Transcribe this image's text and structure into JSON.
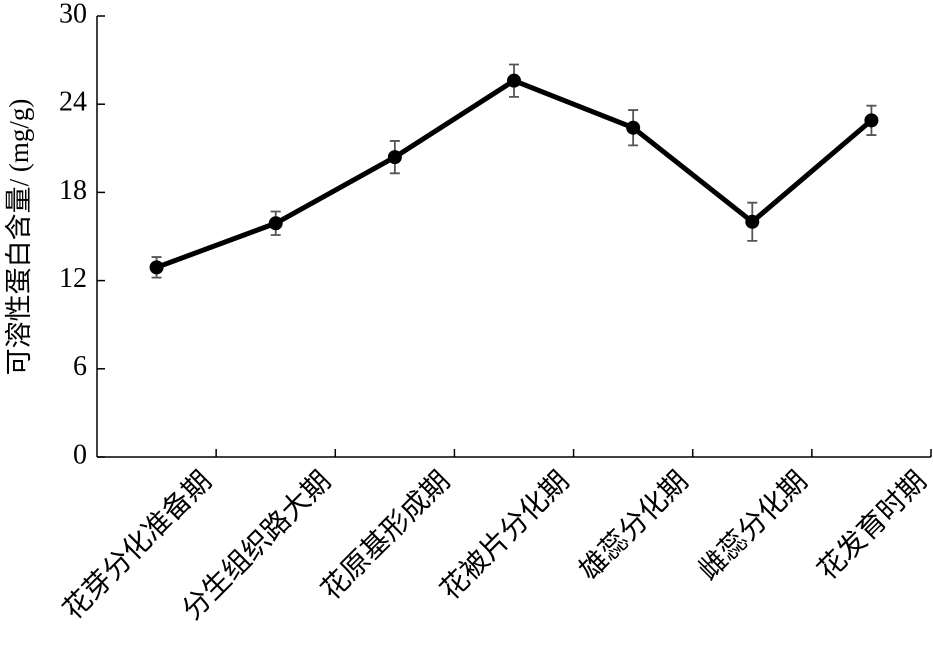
{
  "chart_data": {
    "type": "line",
    "y_label": "可溶性蛋白含量/ (mg/g)",
    "categories": [
      "花芽分化准备期",
      "分生组织路大期",
      "花原基形成期",
      "花被片分化期",
      "雄蕊分化期",
      "雌蕊分化期",
      "花发育时期"
    ],
    "series": [
      {
        "color": "#000000",
        "values": [
          12.9,
          15.9,
          20.4,
          25.6,
          22.4,
          16.0,
          22.9
        ],
        "errors": [
          0.7,
          0.8,
          1.1,
          1.1,
          1.2,
          1.3,
          1.0
        ]
      }
    ],
    "ylim": [
      0,
      30
    ],
    "yticks": [
      0,
      6,
      12,
      18,
      24,
      30
    ]
  }
}
